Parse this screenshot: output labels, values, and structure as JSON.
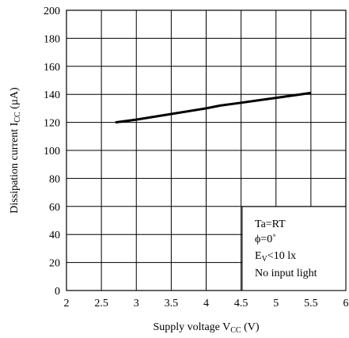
{
  "chart_data": {
    "type": "line",
    "title": "",
    "xlabel": {
      "main": "Supply voltage V",
      "sub": "CC",
      "tail": " (V)"
    },
    "ylabel": {
      "main": "Dissipation current I",
      "sub": "CC",
      "tail": " (µA)"
    },
    "xlim": [
      2,
      6
    ],
    "ylim": [
      0,
      200
    ],
    "xticks": [
      2,
      2.5,
      3,
      3.5,
      4,
      4.5,
      5,
      5.5,
      6
    ],
    "yticks": [
      0,
      20,
      40,
      60,
      80,
      100,
      120,
      140,
      160,
      180,
      200
    ],
    "grid": true,
    "series": [
      {
        "x": [
          2.7,
          3.0,
          3.5,
          4.0,
          4.2,
          4.5,
          5.0,
          5.5
        ],
        "y": [
          120,
          122,
          126,
          130,
          132,
          134,
          137.5,
          141
        ]
      }
    ],
    "annotations": [
      {
        "text": "Ta=RT"
      },
      {
        "text": "ϕ=0˚"
      },
      {
        "main": "E",
        "sub": "V",
        "tail": "<10 lx"
      },
      {
        "text": "No input light"
      }
    ]
  }
}
